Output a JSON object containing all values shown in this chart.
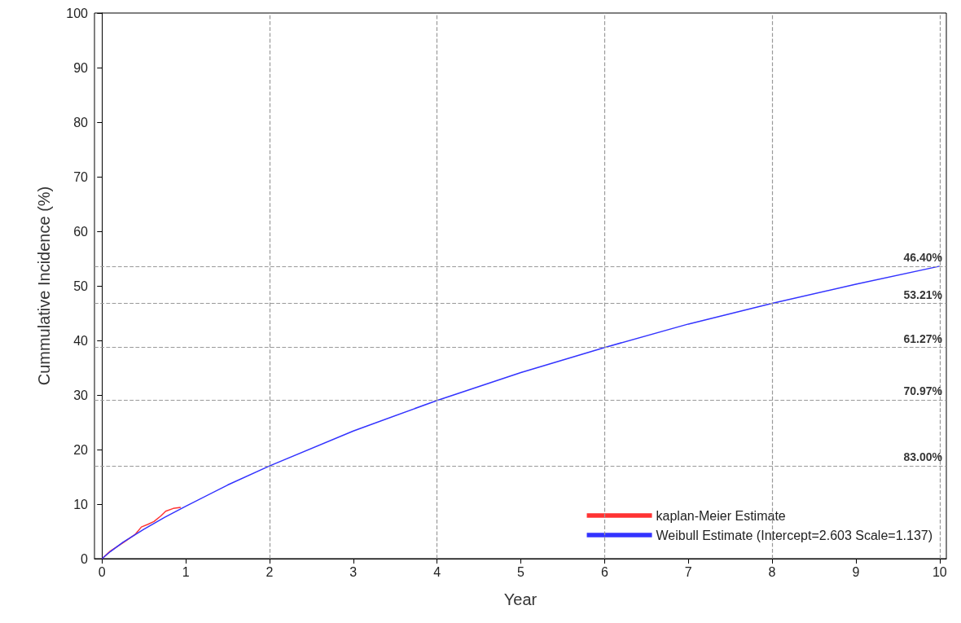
{
  "chart_data": {
    "type": "line",
    "xlabel": "Year",
    "ylabel": "Cummulative Incidence (%)",
    "xlim": [
      -0.09,
      10.08
    ],
    "xticks": [
      0,
      1,
      2,
      3,
      4,
      5,
      6,
      7,
      8,
      9,
      10
    ],
    "ylim": [
      0,
      100
    ],
    "yticks": [
      0,
      10,
      20,
      30,
      40,
      50,
      60,
      70,
      80,
      90,
      100
    ],
    "grid": false,
    "legend": "bottom right",
    "marker": "none",
    "line_style": "solid",
    "series": [
      {
        "name": "kaplan-Meier Estimate",
        "color": "#ff3333",
        "x": [
          0,
          0.1,
          0.26,
          0.4,
          0.47,
          0.55,
          0.62,
          0.7,
          0.76,
          0.85,
          0.94
        ],
        "values": [
          0,
          1.4,
          3.0,
          4.5,
          5.8,
          6.3,
          6.8,
          7.8,
          8.7,
          9.2,
          9.4
        ]
      },
      {
        "name": "Weibull Estimate (Intercept=2.603 Scale=1.137)",
        "color": "#3333ff",
        "x": [
          0,
          0.1,
          0.25,
          0.5,
          0.75,
          1,
          1.5,
          2,
          3,
          4,
          5,
          6,
          7,
          8,
          9,
          10
        ],
        "values": [
          0,
          1.3,
          3.0,
          5.4,
          7.6,
          9.6,
          13.5,
          17.0,
          23.4,
          29.0,
          34.1,
          38.7,
          43.0,
          46.8,
          50.3,
          53.6
        ]
      }
    ],
    "ref_lines": [
      {
        "axis": "y",
        "value": 53.6,
        "line_style": "dashed",
        "color": "#999999"
      },
      {
        "axis": "y",
        "value": 46.79,
        "line_style": "dashed",
        "color": "#999999"
      },
      {
        "axis": "y",
        "value": 38.73,
        "line_style": "dashed",
        "color": "#999999"
      },
      {
        "axis": "y",
        "value": 29.03,
        "line_style": "dashed",
        "color": "#999999"
      },
      {
        "axis": "y",
        "value": 17.0,
        "line_style": "dashed",
        "color": "#999999"
      },
      {
        "axis": "x",
        "value": 2,
        "line_style": "dashed",
        "color": "#999999"
      },
      {
        "axis": "x",
        "value": 4,
        "line_style": "dashed",
        "color": "#999999"
      },
      {
        "axis": "x",
        "value": 6,
        "line_style": "dashed",
        "color": "#999999"
      },
      {
        "axis": "x",
        "value": 8,
        "line_style": "dashed",
        "color": "#999999"
      },
      {
        "axis": "x",
        "value": 10,
        "line_style": "dashed",
        "color": "#999999"
      }
    ],
    "annotations": [
      {
        "text": "46.40%",
        "y": 53.6
      },
      {
        "text": "53.21%",
        "y": 46.79
      },
      {
        "text": "61.27%",
        "y": 38.73
      },
      {
        "text": "70.97%",
        "y": 29.03
      },
      {
        "text": "83.00%",
        "y": 17.0
      }
    ]
  }
}
